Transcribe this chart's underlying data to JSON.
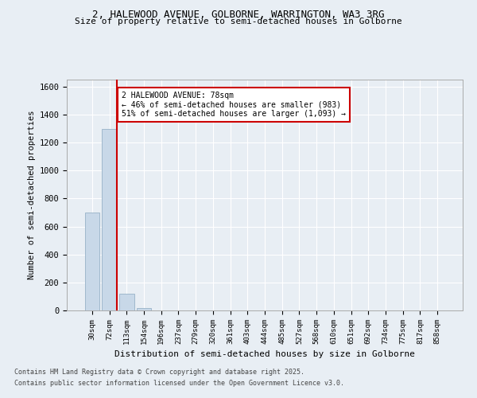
{
  "title_line1": "2, HALEWOOD AVENUE, GOLBORNE, WARRINGTON, WA3 3RG",
  "title_line2": "Size of property relative to semi-detached houses in Golborne",
  "xlabel": "Distribution of semi-detached houses by size in Golborne",
  "ylabel": "Number of semi-detached properties",
  "categories": [
    "30sqm",
    "72sqm",
    "113sqm",
    "154sqm",
    "196sqm",
    "237sqm",
    "279sqm",
    "320sqm",
    "361sqm",
    "403sqm",
    "444sqm",
    "485sqm",
    "527sqm",
    "568sqm",
    "610sqm",
    "651sqm",
    "692sqm",
    "734sqm",
    "775sqm",
    "817sqm",
    "858sqm"
  ],
  "values": [
    700,
    1300,
    120,
    15,
    0,
    0,
    0,
    0,
    0,
    0,
    0,
    0,
    0,
    0,
    0,
    0,
    0,
    0,
    0,
    0,
    0
  ],
  "bar_color": "#c8d8e8",
  "bar_edge_color": "#a0b8cc",
  "property_bar_index": 1,
  "annotation_text": "2 HALEWOOD AVENUE: 78sqm\n← 46% of semi-detached houses are smaller (983)\n51% of semi-detached houses are larger (1,093) →",
  "annotation_box_color": "#ffffff",
  "annotation_edge_color": "#cc0000",
  "line_color": "#cc0000",
  "ylim": [
    0,
    1650
  ],
  "yticks": [
    0,
    200,
    400,
    600,
    800,
    1000,
    1200,
    1400,
    1600
  ],
  "bg_color": "#e8eef4",
  "plot_bg_color": "#e8eef4",
  "grid_color": "#ffffff",
  "footer_line1": "Contains HM Land Registry data © Crown copyright and database right 2025.",
  "footer_line2": "Contains public sector information licensed under the Open Government Licence v3.0."
}
